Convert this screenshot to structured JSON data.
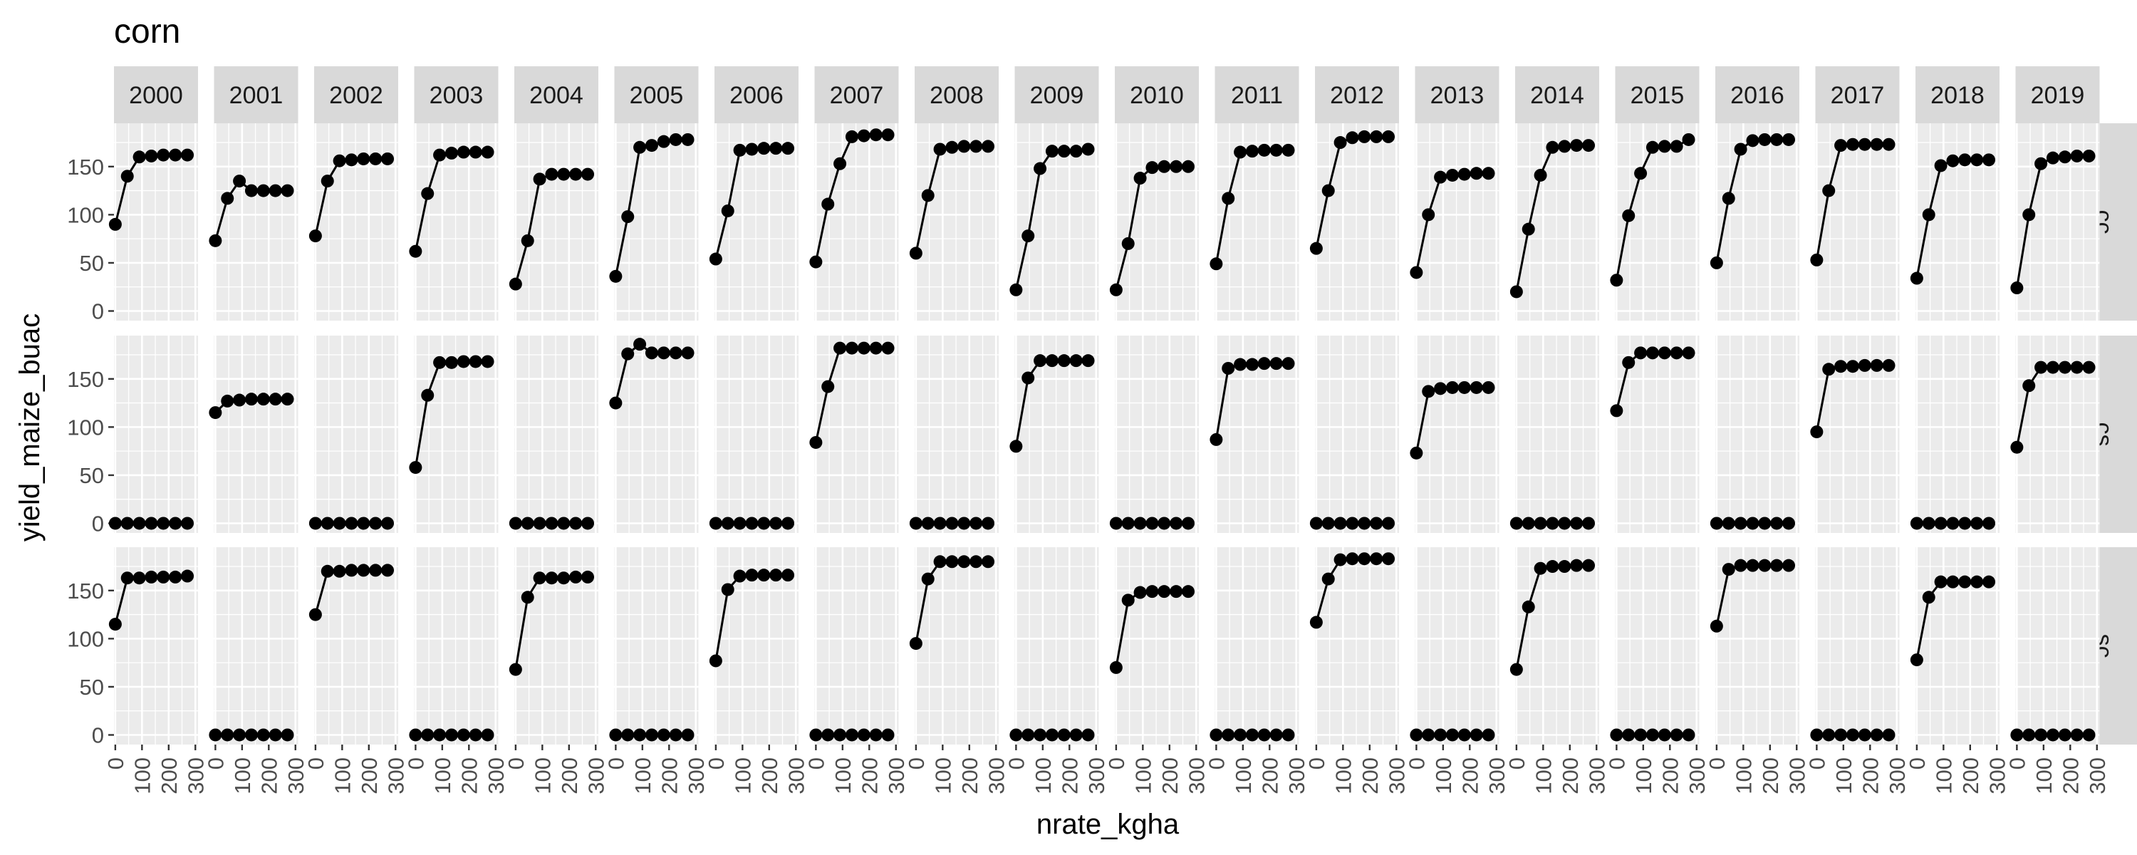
{
  "chart_data": {
    "type": "line",
    "title": "corn",
    "xlabel": "nrate_kgha",
    "ylabel": "yield_maize_buac",
    "xlim": [
      -5,
      310
    ],
    "ylim": [
      -10,
      195
    ],
    "x_ticks": [
      0,
      100,
      200,
      300
    ],
    "y_ticks": [
      0,
      50,
      100,
      150
    ],
    "x": [
      0,
      45,
      90,
      135,
      180,
      225,
      270
    ],
    "grid": true,
    "legend": "none",
    "years": [
      "2000",
      "2001",
      "2002",
      "2003",
      "2004",
      "2005",
      "2006",
      "2007",
      "2008",
      "2009",
      "2010",
      "2011",
      "2012",
      "2013",
      "2014",
      "2015",
      "2016",
      "2017",
      "2018",
      "2019"
    ],
    "rotations": [
      "cc",
      "cs",
      "sc"
    ],
    "series": {
      "cc": [
        [
          90,
          140,
          160,
          161,
          162,
          162,
          162
        ],
        [
          73,
          117,
          135,
          125,
          125,
          125,
          125
        ],
        [
          78,
          135,
          156,
          157,
          158,
          158,
          158
        ],
        [
          62,
          122,
          162,
          164,
          165,
          165,
          165
        ],
        [
          28,
          73,
          137,
          142,
          142,
          142,
          142
        ],
        [
          36,
          98,
          170,
          172,
          176,
          178,
          178
        ],
        [
          54,
          104,
          167,
          168,
          169,
          169,
          169
        ],
        [
          51,
          111,
          153,
          181,
          182,
          183,
          183
        ],
        [
          60,
          120,
          168,
          170,
          171,
          171,
          171
        ],
        [
          22,
          78,
          148,
          166,
          166,
          166,
          168
        ],
        [
          22,
          70,
          138,
          149,
          150,
          150,
          150
        ],
        [
          49,
          117,
          165,
          166,
          167,
          167,
          167
        ],
        [
          65,
          125,
          175,
          180,
          181,
          181,
          181
        ],
        [
          40,
          100,
          139,
          141,
          142,
          143,
          143
        ],
        [
          20,
          85,
          141,
          170,
          171,
          172,
          172
        ],
        [
          32,
          99,
          143,
          170,
          171,
          171,
          178
        ],
        [
          50,
          117,
          168,
          177,
          178,
          178,
          178
        ],
        [
          53,
          125,
          172,
          173,
          173,
          173,
          173
        ],
        [
          34,
          100,
          151,
          156,
          157,
          157,
          157
        ],
        [
          24,
          100,
          153,
          159,
          160,
          161,
          161
        ]
      ],
      "cs": [
        [
          0,
          0,
          0,
          0,
          0,
          0,
          0
        ],
        [
          115,
          127,
          128,
          129,
          129,
          129,
          129
        ],
        [
          0,
          0,
          0,
          0,
          0,
          0,
          0
        ],
        [
          58,
          133,
          167,
          167,
          168,
          168,
          168
        ],
        [
          0,
          0,
          0,
          0,
          0,
          0,
          0
        ],
        [
          125,
          176,
          186,
          177,
          177,
          177,
          177
        ],
        [
          0,
          0,
          0,
          0,
          0,
          0,
          0
        ],
        [
          84,
          142,
          182,
          182,
          182,
          182,
          182
        ],
        [
          0,
          0,
          0,
          0,
          0,
          0,
          0
        ],
        [
          80,
          151,
          169,
          169,
          169,
          169,
          169
        ],
        [
          0,
          0,
          0,
          0,
          0,
          0,
          0
        ],
        [
          87,
          161,
          165,
          165,
          166,
          166,
          166
        ],
        [
          0,
          0,
          0,
          0,
          0,
          0,
          0
        ],
        [
          73,
          137,
          140,
          141,
          141,
          141,
          141
        ],
        [
          0,
          0,
          0,
          0,
          0,
          0,
          0
        ],
        [
          117,
          167,
          177,
          177,
          177,
          177,
          177
        ],
        [
          0,
          0,
          0,
          0,
          0,
          0,
          0
        ],
        [
          95,
          160,
          163,
          163,
          164,
          164,
          164
        ],
        [
          0,
          0,
          0,
          0,
          0,
          0,
          0
        ],
        [
          79,
          143,
          162,
          162,
          162,
          162,
          162
        ]
      ],
      "sc": [
        [
          115,
          163,
          163,
          164,
          164,
          164,
          165
        ],
        [
          0,
          0,
          0,
          0,
          0,
          0,
          0
        ],
        [
          125,
          170,
          170,
          171,
          171,
          171,
          171
        ],
        [
          0,
          0,
          0,
          0,
          0,
          0,
          0
        ],
        [
          68,
          143,
          163,
          163,
          163,
          164,
          164
        ],
        [
          0,
          0,
          0,
          0,
          0,
          0,
          0
        ],
        [
          77,
          151,
          165,
          166,
          166,
          166,
          166
        ],
        [
          0,
          0,
          0,
          0,
          0,
          0,
          0
        ],
        [
          95,
          162,
          180,
          180,
          180,
          180,
          180
        ],
        [
          0,
          0,
          0,
          0,
          0,
          0,
          0
        ],
        [
          70,
          140,
          148,
          149,
          149,
          149,
          149
        ],
        [
          0,
          0,
          0,
          0,
          0,
          0,
          0
        ],
        [
          117,
          162,
          182,
          183,
          183,
          183,
          183
        ],
        [
          0,
          0,
          0,
          0,
          0,
          0,
          0
        ],
        [
          68,
          133,
          173,
          175,
          175,
          176,
          176
        ],
        [
          0,
          0,
          0,
          0,
          0,
          0,
          0
        ],
        [
          113,
          172,
          176,
          176,
          176,
          176,
          176
        ],
        [
          0,
          0,
          0,
          0,
          0,
          0,
          0
        ],
        [
          78,
          143,
          159,
          159,
          159,
          159,
          159
        ],
        [
          0,
          0,
          0,
          0,
          0,
          0,
          0
        ]
      ]
    }
  }
}
